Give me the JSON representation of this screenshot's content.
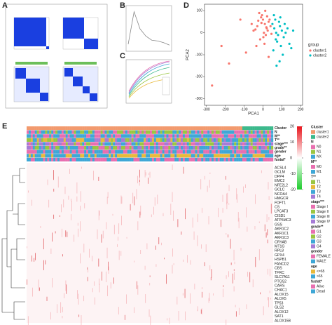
{
  "panel_labels": [
    "A",
    "B",
    "C",
    "D",
    "E"
  ],
  "chart_data": [
    {
      "type": "line",
      "panel": "B",
      "values": [
        0.12,
        0.92,
        0.5,
        0.32,
        0.22,
        0.2,
        0.16,
        0.1
      ],
      "ylim": [
        0,
        1
      ],
      "color": "#888888"
    },
    {
      "type": "scatter",
      "panel": "D",
      "xlabel": "PCA1",
      "ylabel": "PCA2",
      "legend_title": "group",
      "xlim": [
        -310,
        210
      ],
      "ylim": [
        -330,
        130
      ],
      "xticks": [
        -300,
        -200,
        -100,
        0,
        100,
        200
      ],
      "yticks": [
        -300,
        -200,
        -100,
        0,
        100
      ],
      "series": [
        {
          "name": "cluster1",
          "color": "#f8766d",
          "x": [
            -20,
            -10,
            0,
            10,
            20,
            30,
            -30,
            5,
            15,
            25,
            -5,
            35,
            -15,
            40,
            8,
            -25,
            12,
            -40,
            22,
            2,
            -8,
            45,
            18,
            -35,
            -60,
            -120,
            -180,
            -270,
            -220,
            -90,
            30,
            -50
          ],
          "y": [
            90,
            70,
            60,
            40,
            20,
            50,
            30,
            0,
            -10,
            10,
            80,
            60,
            -30,
            30,
            -50,
            55,
            100,
            15,
            75,
            -20,
            45,
            -5,
            25,
            -60,
            40,
            60,
            -140,
            -240,
            -60,
            -90,
            -110,
            10
          ]
        },
        {
          "name": "cluster2",
          "color": "#00bfc4",
          "x": [
            50,
            60,
            70,
            80,
            90,
            100,
            110,
            65,
            75,
            85,
            95,
            55,
            120,
            130,
            105,
            88,
            72,
            140,
            160,
            115,
            58,
            92,
            150,
            68
          ],
          "y": [
            40,
            20,
            0,
            -10,
            30,
            10,
            -20,
            60,
            -40,
            50,
            -60,
            -80,
            0,
            20,
            -100,
            -130,
            -150,
            -50,
            10,
            40,
            80,
            70,
            -70,
            -30
          ]
        }
      ]
    }
  ],
  "heatmap": {
    "annotations": [
      "Cluster",
      "N",
      "M**",
      "T**",
      "stage***",
      "grade**",
      "gender",
      "age",
      "fustat*"
    ],
    "genes": [
      "ACSL4",
      "GCLM",
      "DPP4",
      "EMC2",
      "NFE2L2",
      "GCLC",
      "NCOA4",
      "HMGCR",
      "FDFT1",
      "CS",
      "LPCAT3",
      "CISD1",
      "ATP5MC3",
      "GSS",
      "AKR1C2",
      "AKR1C1",
      "AKR1C3",
      "CRYAB",
      "MT1G",
      "RPL8",
      "GPX4",
      "HSPB1",
      "FANCD2",
      "CBS",
      "TFRC",
      "SLC7A11",
      "PTGS2",
      "CARS",
      "CHAC1",
      "ALOX15",
      "ALOX5",
      "TP53",
      "GLS2",
      "ALOX12",
      "SAT1",
      "ALOX15B"
    ],
    "colorbar": {
      "range": [
        -20,
        20
      ],
      "ticks": [
        20,
        10,
        0,
        -10,
        -20
      ]
    },
    "legend": [
      {
        "title": "Cluster",
        "items": [
          {
            "name": "cluster1",
            "color": "#f29a6e"
          },
          {
            "name": "cluster2",
            "color": "#3cb98c"
          }
        ]
      },
      {
        "title": "N",
        "items": [
          {
            "name": "N0",
            "color": "#e86fb0"
          },
          {
            "name": "N1",
            "color": "#9ac641"
          },
          {
            "name": "NX",
            "color": "#3fa7d6"
          }
        ]
      },
      {
        "title": "M**",
        "items": [
          {
            "name": "M0",
            "color": "#e86fb0"
          },
          {
            "name": "M1",
            "color": "#3fa7d6"
          }
        ]
      },
      {
        "title": "T**",
        "items": [
          {
            "name": "T1",
            "color": "#9ac641"
          },
          {
            "name": "T2",
            "color": "#e8b93a"
          },
          {
            "name": "T3",
            "color": "#3fa7d6"
          },
          {
            "name": "T4",
            "color": "#a67bd6"
          }
        ]
      },
      {
        "title": "stage***",
        "items": [
          {
            "name": "Stage I",
            "color": "#e86fb0"
          },
          {
            "name": "Stage II",
            "color": "#9ac641"
          },
          {
            "name": "Stage III",
            "color": "#3fa7d6"
          },
          {
            "name": "Stage IV",
            "color": "#a67bd6"
          }
        ]
      },
      {
        "title": "grade**",
        "items": [
          {
            "name": "G1",
            "color": "#e86fb0"
          },
          {
            "name": "G2",
            "color": "#9ac641"
          },
          {
            "name": "G3",
            "color": "#3fa7d6"
          },
          {
            "name": "G4",
            "color": "#a67bd6"
          }
        ]
      },
      {
        "title": "gender",
        "items": [
          {
            "name": "FEMALE",
            "color": "#e86fb0"
          },
          {
            "name": "MALE",
            "color": "#3fa7d6"
          }
        ]
      },
      {
        "title": "age",
        "items": [
          {
            "name": "<=65",
            "color": "#e8b93a"
          },
          {
            "name": ">65",
            "color": "#3fa7d6"
          }
        ]
      },
      {
        "title": "fustat*",
        "items": [
          {
            "name": "Alive",
            "color": "#e86fb0"
          },
          {
            "name": "Dead",
            "color": "#3fa7d6"
          }
        ]
      }
    ]
  }
}
